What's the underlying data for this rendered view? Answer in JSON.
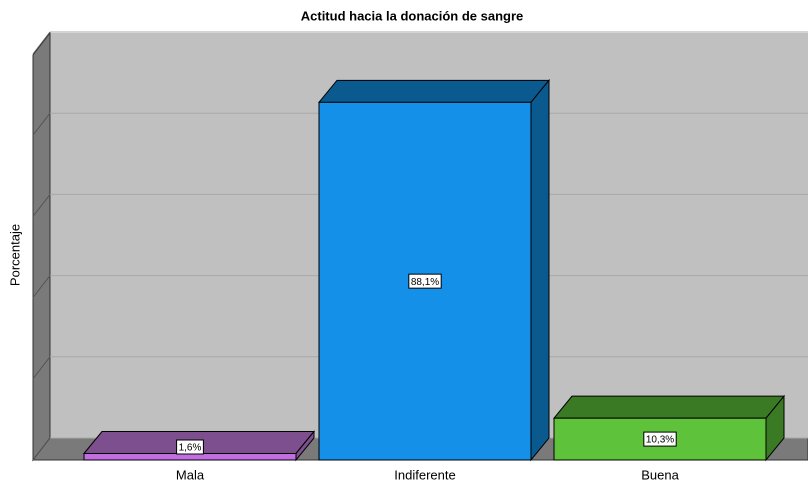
{
  "chart_data": {
    "type": "bar",
    "title": "Actitud hacia la donación de sangre",
    "y_label": "Porcentaje",
    "categories": [
      "Mala",
      "Indiferente",
      "Buena"
    ],
    "values": [
      1.6,
      88.1,
      10.3
    ],
    "value_labels": [
      "1,6%",
      "88,1%",
      "10,3%"
    ],
    "colors": [
      "#c06ee0",
      "#1490e8",
      "#5ec23a"
    ],
    "shade_colors": [
      "#7e4f8e",
      "#0b5a8f",
      "#3a7a25"
    ],
    "ylim": [
      0,
      100
    ],
    "yticks": [
      0,
      20,
      40,
      60,
      80,
      100
    ],
    "grid": true
  }
}
